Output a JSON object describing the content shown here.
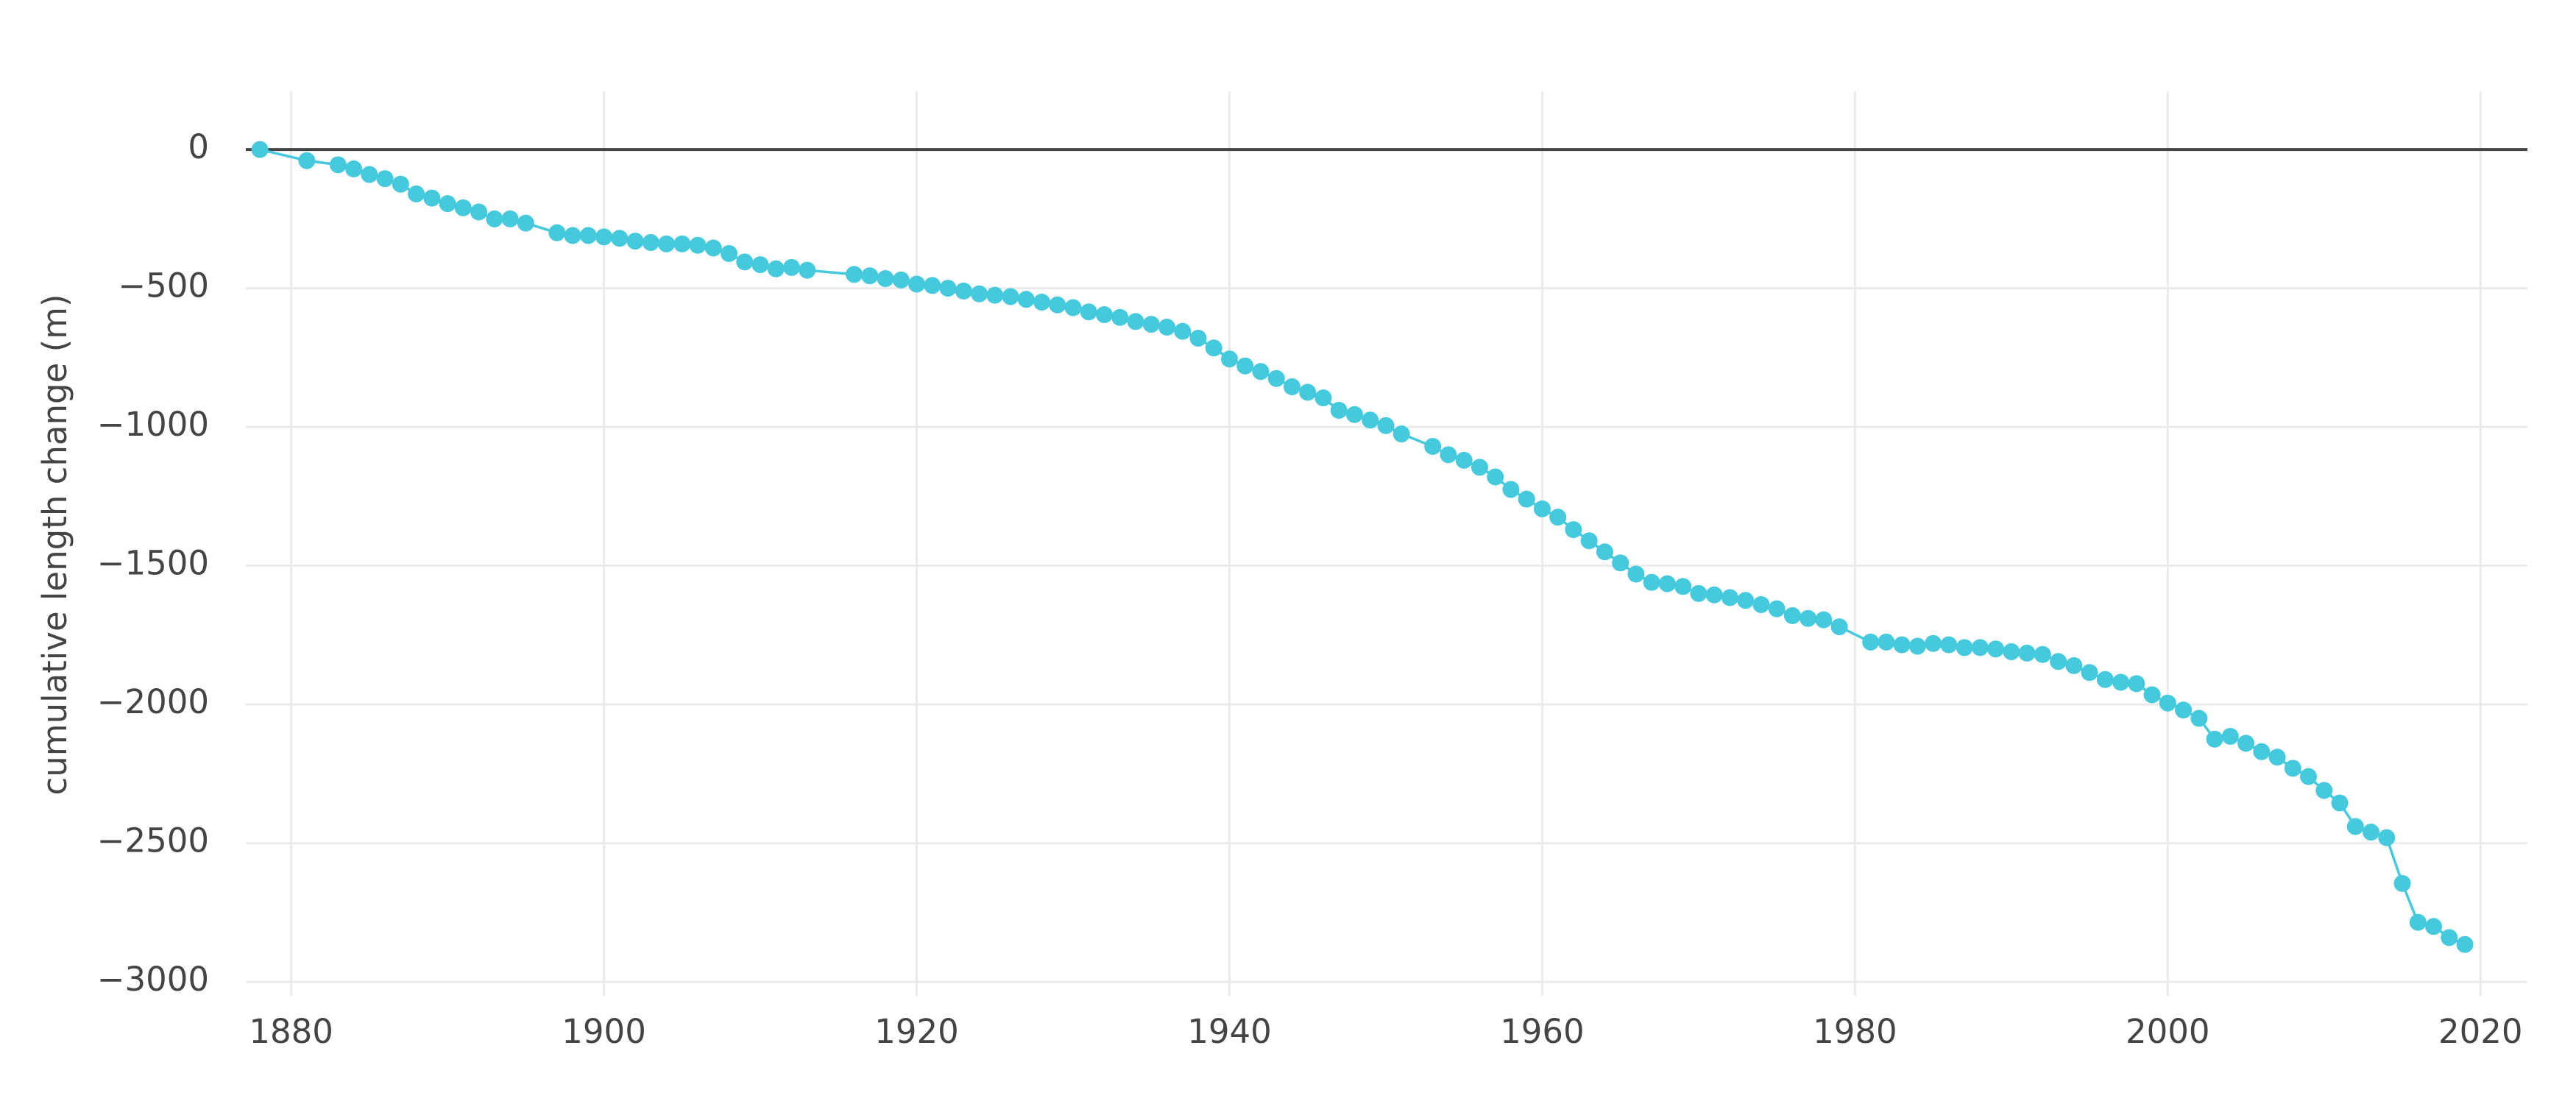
{
  "chart_data": {
    "type": "line",
    "y_label": "cumulative length change (m)",
    "x": [
      1878,
      1881,
      1883,
      1884,
      1885,
      1886,
      1887,
      1888,
      1889,
      1890,
      1891,
      1892,
      1893,
      1894,
      1895,
      1897,
      1898,
      1899,
      1900,
      1901,
      1902,
      1903,
      1904,
      1905,
      1906,
      1907,
      1908,
      1909,
      1910,
      1911,
      1912,
      1913,
      1916,
      1917,
      1918,
      1919,
      1920,
      1921,
      1922,
      1923,
      1924,
      1925,
      1926,
      1927,
      1928,
      1929,
      1930,
      1931,
      1932,
      1933,
      1934,
      1935,
      1936,
      1937,
      1938,
      1939,
      1940,
      1941,
      1942,
      1943,
      1944,
      1945,
      1946,
      1947,
      1948,
      1949,
      1950,
      1951,
      1953,
      1954,
      1955,
      1956,
      1957,
      1958,
      1959,
      1960,
      1961,
      1962,
      1963,
      1964,
      1965,
      1966,
      1967,
      1968,
      1969,
      1970,
      1971,
      1972,
      1973,
      1974,
      1975,
      1976,
      1977,
      1978,
      1979,
      1981,
      1982,
      1983,
      1984,
      1985,
      1986,
      1987,
      1988,
      1989,
      1990,
      1991,
      1992,
      1993,
      1994,
      1995,
      1996,
      1997,
      1998,
      1999,
      2000,
      2001,
      2002,
      2003,
      2004,
      2005,
      2006,
      2007,
      2008,
      2009,
      2010,
      2011,
      2012,
      2013,
      2014,
      2015,
      2016,
      2017,
      2018,
      2019
    ],
    "series": [
      {
        "color": "#45c9dc",
        "values": [
          0,
          -40,
          -55,
          -70,
          -90,
          -105,
          -125,
          -160,
          -175,
          -195,
          -210,
          -225,
          -250,
          -250,
          -265,
          -300,
          -310,
          -310,
          -315,
          -320,
          -330,
          -335,
          -340,
          -340,
          -345,
          -355,
          -375,
          -405,
          -415,
          -430,
          -425,
          -435,
          -450,
          -455,
          -465,
          -470,
          -485,
          -490,
          -500,
          -510,
          -520,
          -525,
          -530,
          -540,
          -550,
          -560,
          -570,
          -585,
          -595,
          -605,
          -620,
          -630,
          -640,
          -655,
          -680,
          -715,
          -755,
          -780,
          -800,
          -825,
          -855,
          -875,
          -895,
          -940,
          -955,
          -975,
          -995,
          -1025,
          -1070,
          -1100,
          -1120,
          -1145,
          -1180,
          -1225,
          -1260,
          -1295,
          -1325,
          -1370,
          -1410,
          -1450,
          -1490,
          -1530,
          -1560,
          -1565,
          -1575,
          -1600,
          -1605,
          -1615,
          -1625,
          -1640,
          -1655,
          -1680,
          -1690,
          -1695,
          -1720,
          -1775,
          -1775,
          -1785,
          -1790,
          -1780,
          -1785,
          -1795,
          -1795,
          -1800,
          -1810,
          -1815,
          -1820,
          -1845,
          -1860,
          -1885,
          -1910,
          -1920,
          -1925,
          -1965,
          -1995,
          -2020,
          -2050,
          -2125,
          -2115,
          -2140,
          -2170,
          -2190,
          -2230,
          -2260,
          -2310,
          -2355,
          -2440,
          -2460,
          -2480,
          -2645,
          -2785,
          -2800,
          -2840,
          -2865
        ]
      }
    ],
    "xlim": [
      1877.1,
      2023
    ],
    "ylim": [
      -3050,
      210
    ],
    "xticks": [
      1880,
      1900,
      1920,
      1940,
      1960,
      1980,
      2000,
      2020
    ],
    "yticks": [
      0,
      {
        "value": -500,
        "label": "−500"
      },
      {
        "value": -1000,
        "label": "−1000"
      },
      {
        "value": -1500,
        "label": "−1500"
      },
      {
        "value": -2000,
        "label": "−2000"
      },
      {
        "value": -2500,
        "label": "−2500"
      },
      {
        "value": -3000,
        "label": "−3000"
      }
    ],
    "grid": true,
    "zeroline": true
  }
}
